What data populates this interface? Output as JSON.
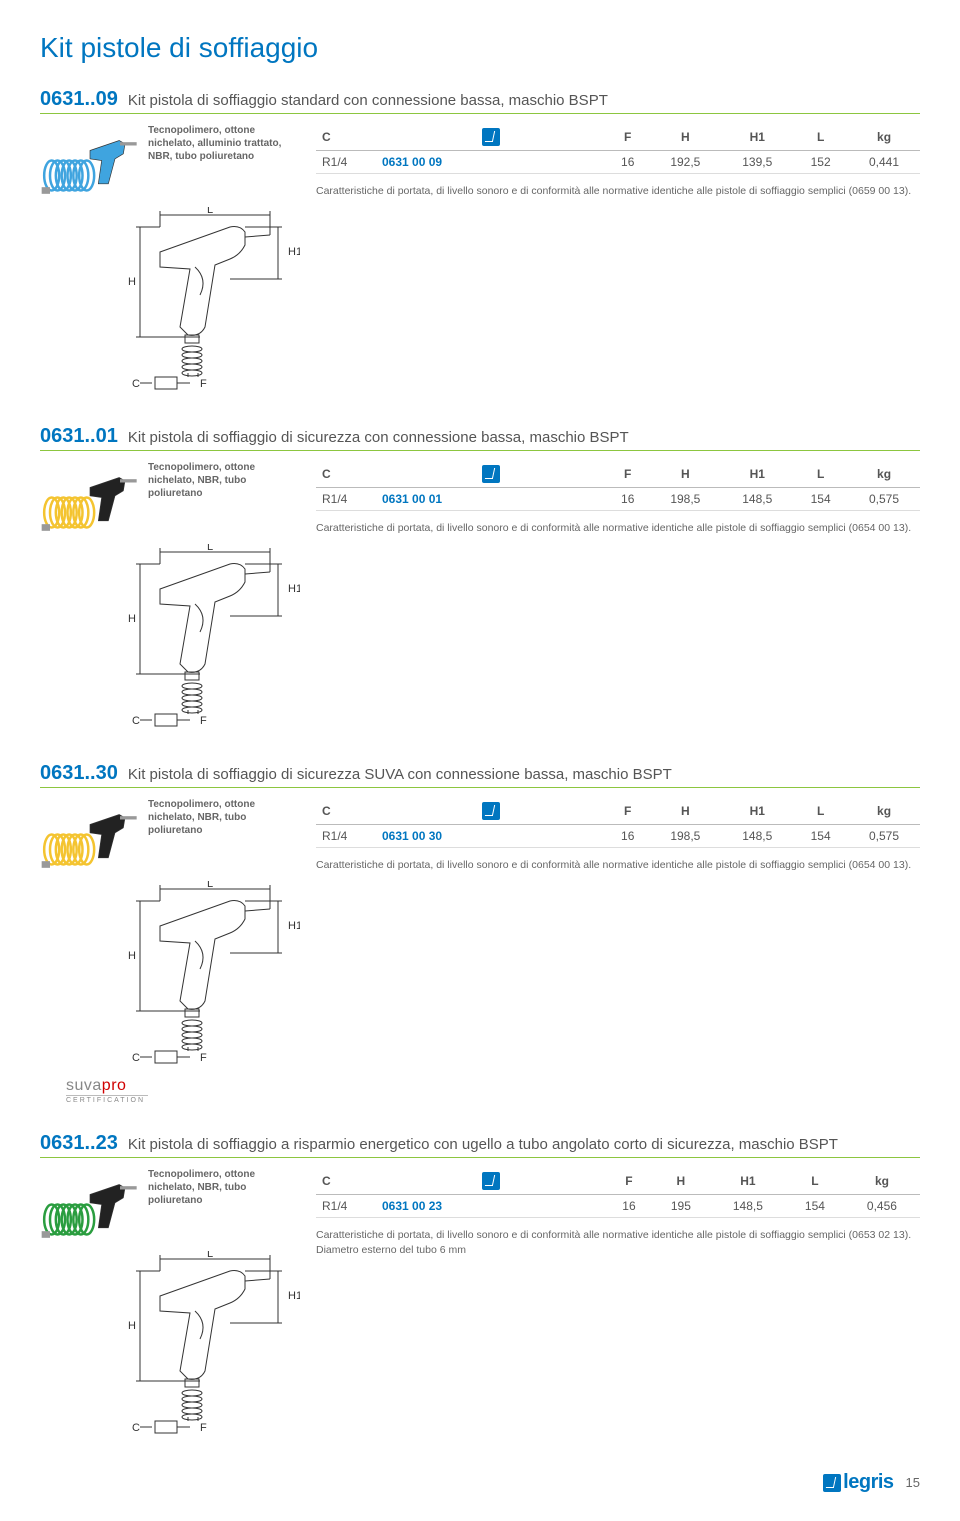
{
  "page_title": "Kit pistole di soffiaggio",
  "footer": {
    "logo_text": "legris",
    "page_number": "15"
  },
  "colors": {
    "accent_blue": "#0076c0",
    "rule_green": "#8cc63f",
    "text_grey": "#555555",
    "note_grey": "#666666",
    "gun_blue": "#3fa4df",
    "gun_yellow": "#f4c430",
    "gun_green": "#2a9d3f",
    "gun_black": "#222222",
    "coil_stroke": "#555555"
  },
  "table_headers": [
    "C",
    "",
    "F",
    "H",
    "H1",
    "L",
    "kg"
  ],
  "products": [
    {
      "code": "0631..09",
      "title": "Kit pistola di soffiaggio standard con connessione bassa, maschio BSPT",
      "materials": "Tecnopolimero, ottone nichelato, alluminio trattato, NBR, tubo poliuretano",
      "row": {
        "C": "R1/4",
        "ref": "0631 00 09",
        "F": "16",
        "H": "192,5",
        "H1": "139,5",
        "L": "152",
        "kg": "0,441"
      },
      "note": "Caratteristiche di portata, di livello sonoro e di conformità alle normative identiche alle pistole di soffiaggio semplici (0659 00 13).",
      "gun_color": "#3fa4df",
      "show_suva": false
    },
    {
      "code": "0631..01",
      "title": "Kit pistola di soffiaggio di sicurezza con connessione bassa, maschio BSPT",
      "materials": "Tecnopolimero, ottone nichelato, NBR, tubo poliuretano",
      "row": {
        "C": "R1/4",
        "ref": "0631 00 01",
        "F": "16",
        "H": "198,5",
        "H1": "148,5",
        "L": "154",
        "kg": "0,575"
      },
      "note": "Caratteristiche di portata, di livello sonoro e di conformità alle normative identiche alle pistole di soffiaggio semplici (0654 00 13).",
      "gun_color": "#222222",
      "coil_color": "#f4c430",
      "show_suva": false
    },
    {
      "code": "0631..30",
      "title": "Kit pistola di soffiaggio di sicurezza SUVA con connessione bassa, maschio BSPT",
      "materials": "Tecnopolimero, ottone nichelato, NBR, tubo poliuretano",
      "row": {
        "C": "R1/4",
        "ref": "0631 00 30",
        "F": "16",
        "H": "198,5",
        "H1": "148,5",
        "L": "154",
        "kg": "0,575"
      },
      "note": "Caratteristiche di portata, di livello sonoro e di conformità alle normative identiche alle pistole di soffiaggio semplici (0654 00 13).",
      "gun_color": "#222222",
      "coil_color": "#f4c430",
      "show_suva": true
    },
    {
      "code": "0631..23",
      "title": "Kit pistola di soffiaggio a risparmio energetico con ugello a tubo angolato corto di sicurezza, maschio BSPT",
      "materials": "Tecnopolimero, ottone nichelato, NBR, tubo poliuretano",
      "row": {
        "C": "R1/4",
        "ref": "0631 00 23",
        "F": "16",
        "H": "195",
        "H1": "148,5",
        "L": "154",
        "kg": "0,456"
      },
      "note": "Caratteristiche di portata, di livello sonoro e di conformità alle normative identiche alle pistole di soffiaggio semplici (0653 02 13).\nDiametro esterno del tubo 6 mm",
      "gun_color": "#222222",
      "coil_color": "#2a9d3f",
      "show_suva": false
    }
  ],
  "suva": {
    "brand": "suva",
    "pro": "pro",
    "cert": "CERTIFICATION"
  },
  "diagram_labels": {
    "L": "L",
    "H": "H",
    "H1": "H1",
    "C": "C",
    "F": "F"
  }
}
